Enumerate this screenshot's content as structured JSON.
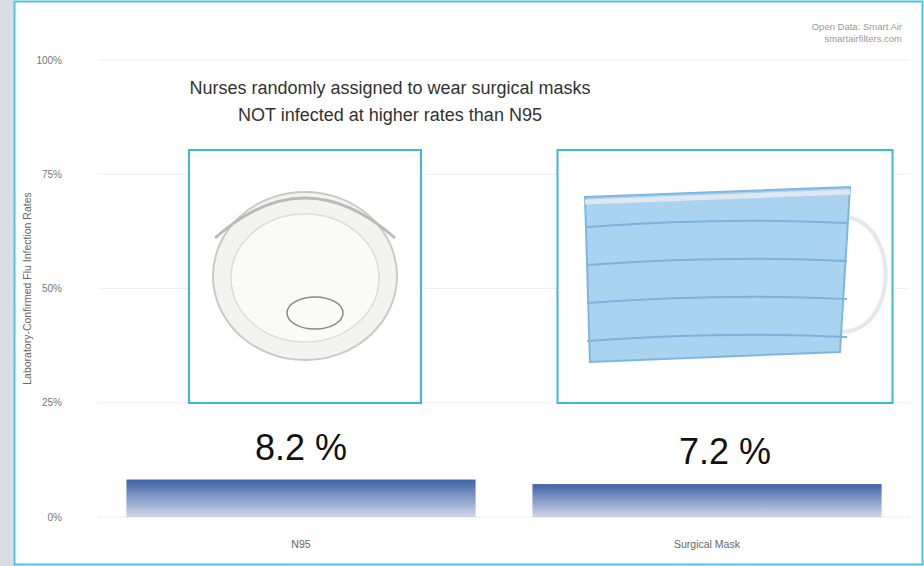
{
  "chart_data": {
    "type": "bar",
    "title": [
      "Nurses randomly assigned to wear surgical masks",
      "NOT infected at higher rates than N95"
    ],
    "y_label": "Laboratory-Confirmed Flu Infection Rates",
    "annotations": [
      "Open Data: Smart Air",
      "smartairfilters.com"
    ],
    "categories": [
      "N95",
      "Surgical Mask"
    ],
    "values": [
      8.2,
      7.2
    ],
    "value_labels": [
      "8.2 %",
      "7.2 %"
    ],
    "data_labels": true,
    "color": "#3f63a6",
    "ylim": [
      0,
      100
    ],
    "yticks": [
      {
        "value": 0,
        "label": "0%"
      },
      {
        "value": 25,
        "label": "25%"
      },
      {
        "value": 50,
        "label": "50%"
      },
      {
        "value": 75,
        "label": "75%"
      },
      {
        "value": 100,
        "label": "100%"
      }
    ],
    "grid": true
  }
}
